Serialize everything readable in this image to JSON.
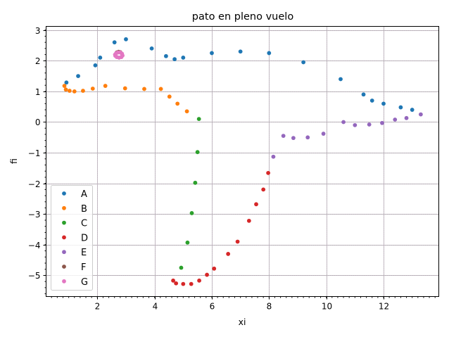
{
  "chart_data": {
    "type": "scatter",
    "title": "pato en pleno vuelo",
    "xlabel": "xi",
    "ylabel": "fi",
    "xlim": [
      0.21,
      13.93
    ],
    "ylim": [
      -5.69,
      3.12
    ],
    "xticks": [
      2,
      4,
      6,
      8,
      10,
      12
    ],
    "yticks": [
      3,
      2,
      1,
      0,
      -1,
      -2,
      -3,
      -4,
      -5
    ],
    "grid": true,
    "legend_position": "lower left",
    "series": [
      {
        "name": "A",
        "color": "#1f77b4",
        "points": [
          [
            0.92,
            1.29
          ],
          [
            1.33,
            1.5
          ],
          [
            1.93,
            1.85
          ],
          [
            2.1,
            2.1
          ],
          [
            2.6,
            2.6
          ],
          [
            3.0,
            2.7
          ],
          [
            3.9,
            2.4
          ],
          [
            4.4,
            2.15
          ],
          [
            4.7,
            2.05
          ],
          [
            5.0,
            2.1
          ],
          [
            6.0,
            2.25
          ],
          [
            7.0,
            2.3
          ],
          [
            8.0,
            2.25
          ],
          [
            9.2,
            1.95
          ],
          [
            10.5,
            1.4
          ],
          [
            11.3,
            0.9
          ],
          [
            11.6,
            0.7
          ],
          [
            12.0,
            0.6
          ],
          [
            12.6,
            0.48
          ],
          [
            13.0,
            0.4
          ]
        ]
      },
      {
        "name": "B",
        "color": "#ff7f0e",
        "points": [
          [
            0.85,
            1.18
          ],
          [
            0.9,
            1.06
          ],
          [
            1.03,
            1.02
          ],
          [
            1.2,
            1.0
          ],
          [
            1.5,
            1.02
          ],
          [
            1.84,
            1.09
          ],
          [
            2.28,
            1.18
          ],
          [
            2.97,
            1.1
          ],
          [
            3.64,
            1.08
          ],
          [
            4.22,
            1.08
          ],
          [
            4.52,
            0.83
          ],
          [
            4.8,
            0.6
          ],
          [
            5.13,
            0.35
          ]
        ]
      },
      {
        "name": "C",
        "color": "#2ca02c",
        "points": [
          [
            5.55,
            0.1
          ],
          [
            5.5,
            -0.98
          ],
          [
            5.42,
            -1.98
          ],
          [
            5.3,
            -2.97
          ],
          [
            5.15,
            -3.93
          ],
          [
            4.93,
            -4.75
          ]
        ]
      },
      {
        "name": "D",
        "color": "#d62728",
        "points": [
          [
            4.65,
            -5.17
          ],
          [
            4.75,
            -5.26
          ],
          [
            5.0,
            -5.28
          ],
          [
            5.28,
            -5.28
          ],
          [
            5.56,
            -5.17
          ],
          [
            5.83,
            -4.98
          ],
          [
            6.08,
            -4.78
          ],
          [
            6.57,
            -4.3
          ],
          [
            6.9,
            -3.9
          ],
          [
            7.3,
            -3.22
          ],
          [
            7.55,
            -2.68
          ],
          [
            7.8,
            -2.2
          ],
          [
            7.97,
            -1.66
          ]
        ]
      },
      {
        "name": "E",
        "color": "#9467bd",
        "points": [
          [
            8.15,
            -1.13
          ],
          [
            8.5,
            -0.45
          ],
          [
            8.85,
            -0.52
          ],
          [
            9.35,
            -0.5
          ],
          [
            9.9,
            -0.38
          ],
          [
            10.6,
            0.0
          ],
          [
            11.0,
            -0.1
          ],
          [
            11.5,
            -0.08
          ],
          [
            11.95,
            -0.03
          ],
          [
            12.4,
            0.08
          ],
          [
            12.8,
            0.13
          ],
          [
            13.3,
            0.25
          ]
        ]
      },
      {
        "name": "F",
        "color": "#8c564b",
        "points": [
          [
            2.68,
            2.27
          ],
          [
            2.74,
            2.29
          ],
          [
            2.8,
            2.28
          ]
        ]
      },
      {
        "name": "G",
        "color": "#e377c2",
        "points": [
          [
            2.62,
            2.2
          ],
          [
            2.66,
            2.25
          ],
          [
            2.72,
            2.27
          ],
          [
            2.8,
            2.27
          ],
          [
            2.86,
            2.23
          ],
          [
            2.88,
            2.17
          ],
          [
            2.84,
            2.12
          ],
          [
            2.76,
            2.1
          ],
          [
            2.68,
            2.12
          ],
          [
            2.63,
            2.16
          ]
        ]
      }
    ]
  }
}
